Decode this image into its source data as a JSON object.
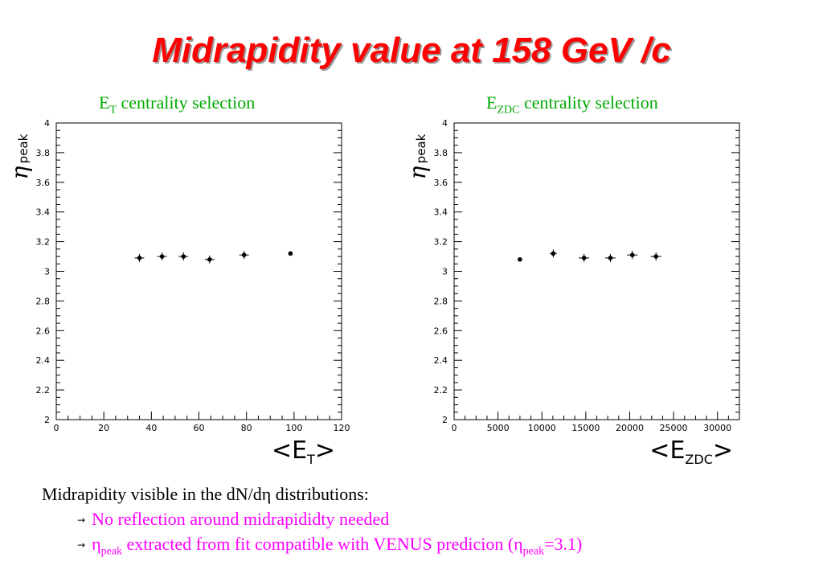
{
  "title": "Midrapidity value at 158 GeV /c",
  "panels": [
    {
      "title_main": "E",
      "title_sub": "T",
      "title_rest": " centrality selection"
    },
    {
      "title_main": "E",
      "title_sub": "ZDC",
      "title_rest": " centrality selection"
    }
  ],
  "chart_data": [
    {
      "type": "scatter",
      "title": "ET centrality selection",
      "xlabel": "<ET>",
      "ylabel": "η peak",
      "xlim": [
        0,
        120
      ],
      "ylim": [
        2,
        4
      ],
      "xticks": [
        0,
        20,
        40,
        60,
        80,
        100,
        120
      ],
      "yticks": [
        2,
        2.2,
        2.4,
        2.6,
        2.8,
        3,
        3.2,
        3.4,
        3.6,
        3.8,
        4
      ],
      "ytick_labels": [
        "2",
        "2.2",
        "2.4",
        "2.6",
        "2.8",
        "3",
        "3.2",
        "3.4",
        "3.6",
        "3.8",
        "4"
      ],
      "axis_label": {
        "bracket_open": "<",
        "main": "E",
        "sub": "T",
        "bracket_close": ">"
      },
      "ylabel_parts": {
        "symbol": "η",
        "sub": "peak"
      },
      "series": [
        {
          "x": [
            35,
            44.5,
            53.5,
            64.5,
            79,
            98.5
          ],
          "y": [
            3.09,
            3.1,
            3.1,
            3.08,
            3.11,
            3.12
          ],
          "xerr": [
            2,
            2,
            2,
            2,
            2,
            0
          ]
        }
      ]
    },
    {
      "type": "scatter",
      "title": "EZDC centrality selection",
      "xlabel": "<EZDC>",
      "ylabel": "η peak",
      "xlim": [
        0,
        32500
      ],
      "ylim": [
        2,
        4
      ],
      "xticks": [
        0,
        5000,
        10000,
        15000,
        20000,
        25000,
        30000
      ],
      "yticks": [
        2,
        2.2,
        2.4,
        2.6,
        2.8,
        3,
        3.2,
        3.4,
        3.6,
        3.8,
        4
      ],
      "ytick_labels": [
        "2",
        "2.2",
        "2.4",
        "2.6",
        "2.8",
        "3",
        "3.2",
        "3.4",
        "3.6",
        "3.8",
        "4"
      ],
      "axis_label": {
        "bracket_open": "<",
        "main": "E",
        "sub": "ZDC",
        "bracket_close": ">"
      },
      "ylabel_parts": {
        "symbol": "η",
        "sub": "peak"
      },
      "series": [
        {
          "x": [
            7500,
            11300,
            14800,
            17800,
            20300,
            23000
          ],
          "y": [
            3.08,
            3.12,
            3.09,
            3.09,
            3.11,
            3.1
          ],
          "xerr": [
            0,
            400,
            600,
            600,
            600,
            600
          ]
        }
      ]
    }
  ],
  "text": {
    "line1": "Midrapidity visible in the dN/dη distributions:",
    "bullet_arrow": "→",
    "bullet1": "No reflection around midrapididty needed",
    "bullet2_eta": "η",
    "bullet2_sub": "peak",
    "bullet2_rest": " extracted from fit compatible with VENUS predicion (",
    "bullet2_eta2": "η",
    "bullet2_sub2": "peak",
    "bullet2_end": "=3.1)"
  }
}
